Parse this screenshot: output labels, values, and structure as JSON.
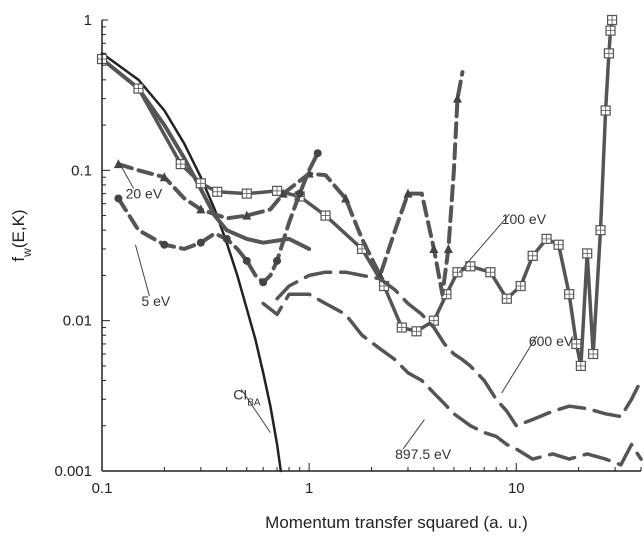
{
  "chart_data": {
    "type": "line",
    "xlabel": "Momentum transfer squared (a. u.)",
    "ylabel": "f_w(E,K)",
    "ylabel_main": "f",
    "ylabel_sub": "w",
    "ylabel_rest": "(E,K)",
    "x_scale": "log",
    "y_scale": "log",
    "xlim": [
      0.1,
      40
    ],
    "ylim": [
      0.001,
      1
    ],
    "grid": false,
    "x_ticks": [
      0.1,
      1,
      10
    ],
    "x_tick_labels": [
      "0.1",
      "1",
      "10"
    ],
    "y_ticks": [
      0.001,
      0.01,
      0.1,
      1
    ],
    "y_tick_labels": [
      "0.001",
      "0.01",
      "0.1",
      "1"
    ],
    "colors": {
      "axis": "#222222",
      "series": "#555555",
      "cba": "#222222"
    },
    "annotations": [
      {
        "text": "20 eV",
        "x": 0.13,
        "y": 0.065,
        "to_x": 0.12,
        "to_y": 0.115
      },
      {
        "text": "5 eV",
        "x": 0.155,
        "y": 0.0125,
        "to_x": 0.145,
        "to_y": 0.032
      },
      {
        "text": "100 eV",
        "x": 8.5,
        "y": 0.044,
        "to_x": 5.3,
        "to_y": 0.021
      },
      {
        "text": "600 eV",
        "x": 11.5,
        "y": 0.0068,
        "to_x": 8.5,
        "to_y": 0.0033
      },
      {
        "text": "897.5 eV",
        "x": 2.6,
        "y": 0.0012,
        "to_x": 3.6,
        "to_y": 0.0022
      },
      {
        "text": "CI",
        "sub": "BA",
        "x": 0.43,
        "y": 0.003,
        "to_x": 0.65,
        "to_y": 0.0018
      }
    ],
    "series": [
      {
        "id": "ci-ba",
        "style": "solid",
        "width": 2.5,
        "color": "#222222",
        "x": [
          0.1,
          0.15,
          0.2,
          0.25,
          0.3,
          0.35,
          0.4,
          0.45,
          0.5,
          0.55,
          0.6,
          0.65,
          0.7,
          0.73
        ],
        "y": [
          0.6,
          0.4,
          0.25,
          0.15,
          0.09,
          0.055,
          0.033,
          0.02,
          0.012,
          0.0075,
          0.0045,
          0.0027,
          0.0015,
          0.001
        ]
      },
      {
        "id": "second-solid",
        "style": "solid",
        "width": 4,
        "color": "#555555",
        "x": [
          0.1,
          0.15,
          0.2,
          0.25,
          0.3,
          0.35,
          0.4,
          0.5,
          0.6,
          0.8,
          1.0
        ],
        "y": [
          0.55,
          0.35,
          0.2,
          0.12,
          0.075,
          0.05,
          0.04,
          0.035,
          0.033,
          0.035,
          0.03
        ]
      },
      {
        "id": "100 eV",
        "style": "solid",
        "width": 3.5,
        "color": "#555555",
        "marker": "square",
        "x": [
          0.1,
          0.15,
          0.24,
          0.3,
          0.36,
          0.5,
          0.7,
          0.9,
          1.2,
          1.8,
          2.3,
          2.8,
          3.3,
          4.0,
          4.6,
          5.2,
          6.0,
          7.5,
          9.0,
          10.5,
          12.0,
          14.0,
          16.0,
          18.0,
          19.5,
          20.5,
          22.0,
          23.5,
          25.5,
          27.0,
          28.0,
          28.5,
          29.0
        ],
        "y": [
          0.55,
          0.35,
          0.11,
          0.082,
          0.072,
          0.07,
          0.073,
          0.067,
          0.05,
          0.03,
          0.017,
          0.009,
          0.0085,
          0.01,
          0.015,
          0.021,
          0.023,
          0.021,
          0.014,
          0.017,
          0.027,
          0.035,
          0.032,
          0.015,
          0.007,
          0.005,
          0.028,
          0.006,
          0.04,
          0.25,
          0.6,
          0.85,
          1.0
        ]
      },
      {
        "id": "20 eV",
        "style": "dashed",
        "width": 4,
        "color": "#555555",
        "marker": "triangle",
        "x": [
          0.12,
          0.15,
          0.2,
          0.25,
          0.3,
          0.4,
          0.5,
          0.65,
          0.75,
          0.9,
          1.0,
          1.2,
          1.5,
          1.8,
          2.2,
          2.6,
          3.0,
          3.5,
          4.0,
          4.4,
          4.7,
          5.0,
          5.2,
          5.5
        ],
        "y": [
          0.11,
          0.1,
          0.09,
          0.065,
          0.055,
          0.048,
          0.05,
          0.055,
          0.07,
          0.085,
          0.095,
          0.093,
          0.065,
          0.035,
          0.02,
          0.04,
          0.07,
          0.07,
          0.03,
          0.015,
          0.03,
          0.1,
          0.3,
          0.45
        ]
      },
      {
        "id": "5 eV",
        "style": "dashed",
        "width": 4,
        "color": "#555555",
        "marker": "circle",
        "x": [
          0.12,
          0.15,
          0.2,
          0.25,
          0.3,
          0.35,
          0.4,
          0.45,
          0.5,
          0.55,
          0.6,
          0.65,
          0.7,
          0.8,
          0.9,
          1.0,
          1.1
        ],
        "y": [
          0.065,
          0.04,
          0.032,
          0.03,
          0.033,
          0.038,
          0.035,
          0.03,
          0.025,
          0.02,
          0.018,
          0.02,
          0.025,
          0.045,
          0.07,
          0.1,
          0.13
        ]
      },
      {
        "id": "600 eV",
        "style": "long-dash",
        "width": 3.5,
        "color": "#555555",
        "x": [
          0.7,
          0.8,
          1.0,
          1.2,
          1.5,
          1.8,
          2.2,
          2.6,
          3.0,
          3.5,
          4.0,
          4.5,
          5.0,
          5.5,
          6.0,
          7.0,
          8.0,
          9.0,
          10.0,
          12.0,
          15.0,
          18.0,
          22.0,
          27.0,
          32.0,
          36.0,
          40.0
        ],
        "y": [
          0.014,
          0.017,
          0.02,
          0.021,
          0.021,
          0.02,
          0.019,
          0.016,
          0.013,
          0.011,
          0.009,
          0.007,
          0.006,
          0.0055,
          0.005,
          0.004,
          0.003,
          0.0025,
          0.002,
          0.0022,
          0.0025,
          0.0027,
          0.0026,
          0.0024,
          0.0023,
          0.003,
          0.004
        ]
      },
      {
        "id": "897.5 eV",
        "style": "long-dash",
        "width": 3.5,
        "color": "#555555",
        "x": [
          0.6,
          0.7,
          0.8,
          1.0,
          1.2,
          1.5,
          1.8,
          2.2,
          2.6,
          3.0,
          3.5,
          4.0,
          4.5,
          5.0,
          6.0,
          7.0,
          8.0,
          9.0,
          10.0,
          12.0,
          15.0,
          18.0,
          22.0,
          27.0,
          32.0,
          36.0,
          40.0
        ],
        "y": [
          0.013,
          0.011,
          0.015,
          0.015,
          0.013,
          0.011,
          0.008,
          0.0065,
          0.0055,
          0.0045,
          0.004,
          0.0033,
          0.0028,
          0.0024,
          0.002,
          0.0018,
          0.0017,
          0.0015,
          0.0014,
          0.0012,
          0.0013,
          0.0012,
          0.0013,
          0.0012,
          0.0011,
          0.0015,
          0.0012
        ]
      }
    ]
  }
}
